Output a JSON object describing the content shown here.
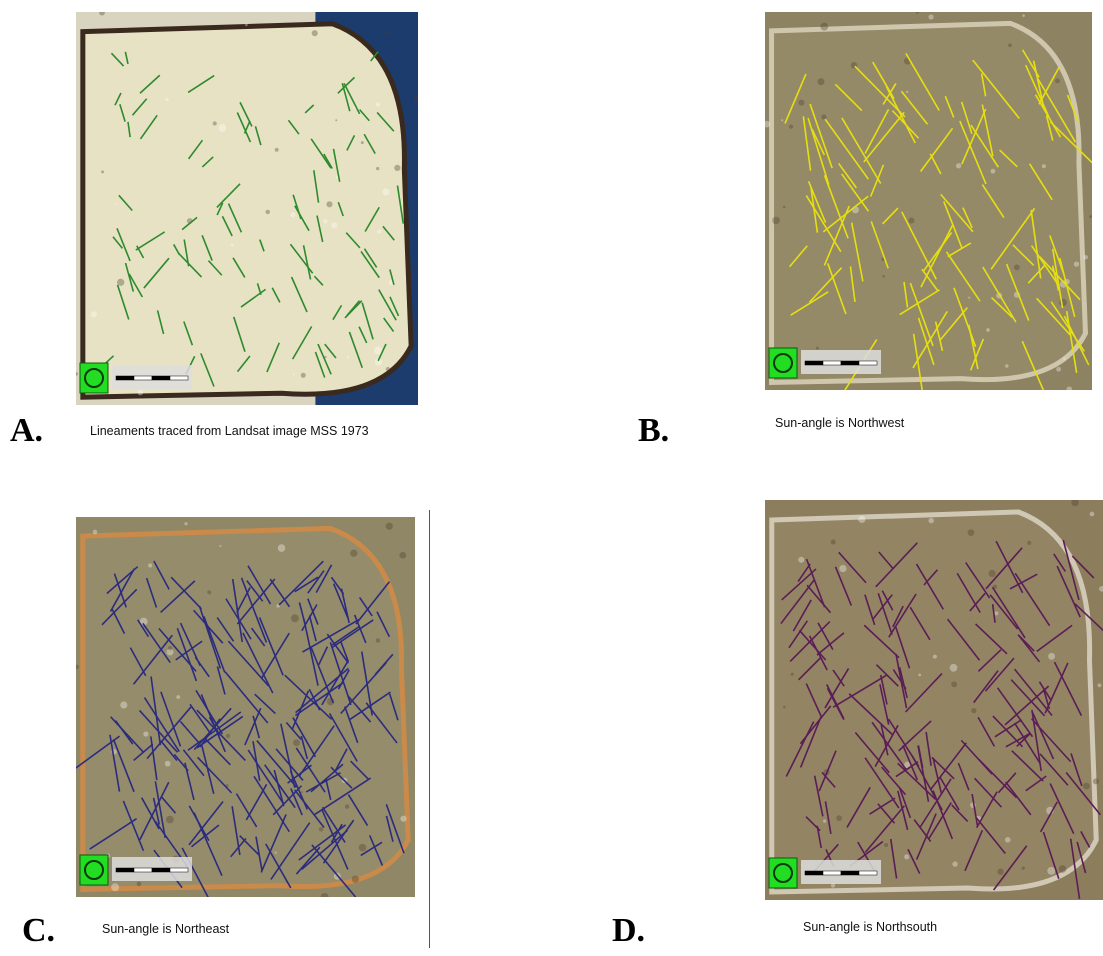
{
  "panels": [
    {
      "letter": "A.",
      "caption": "Lineaments traced from Landsat image MSS 1973"
    },
    {
      "letter": "B.",
      "caption": "Sun-angle is Northwest"
    },
    {
      "letter": "C.",
      "caption": "Sun-angle is Northeast"
    },
    {
      "letter": "D.",
      "caption": "Sun-angle is Northsouth"
    }
  ]
}
